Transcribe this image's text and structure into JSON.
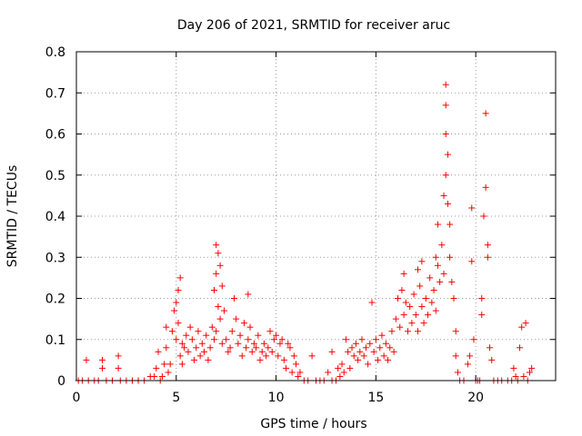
{
  "chart_data": {
    "type": "scatter",
    "title": "Day 206 of 2021, SRMTID for receiver aruc",
    "xlabel": "GPS time / hours",
    "ylabel": "SRMTID / TECUs",
    "xlim": [
      0,
      24
    ],
    "ylim": [
      0,
      0.8
    ],
    "xticks": [
      0,
      5,
      10,
      15,
      20
    ],
    "yticks": [
      0,
      0.1,
      0.2,
      0.3,
      0.4,
      0.5,
      0.6,
      0.7,
      0.8
    ],
    "xtick_labels": [
      "0",
      "5",
      "10",
      "15",
      "20"
    ],
    "ytick_labels": [
      "0",
      "0.1",
      "0.2",
      "0.3",
      "0.4",
      "0.5",
      "0.6",
      "0.7",
      "0.8"
    ],
    "grid": true,
    "marker": "+",
    "color": "#ff0000",
    "series": [
      {
        "name": "SRMTID",
        "points": [
          [
            0.1,
            0
          ],
          [
            0.3,
            0
          ],
          [
            0.5,
            0.05
          ],
          [
            0.6,
            0
          ],
          [
            0.9,
            0
          ],
          [
            1.1,
            0
          ],
          [
            1.3,
            0.05
          ],
          [
            1.3,
            0.03
          ],
          [
            1.5,
            0
          ],
          [
            1.8,
            0
          ],
          [
            2.1,
            0.06
          ],
          [
            2.1,
            0.03
          ],
          [
            2.2,
            0
          ],
          [
            2.5,
            0
          ],
          [
            2.8,
            0
          ],
          [
            3.1,
            0
          ],
          [
            3.4,
            0
          ],
          [
            3.7,
            0.01
          ],
          [
            3.9,
            0.01
          ],
          [
            4.0,
            0.03
          ],
          [
            4.1,
            0.07
          ],
          [
            4.2,
            0
          ],
          [
            4.3,
            0.01
          ],
          [
            4.4,
            0.04
          ],
          [
            4.5,
            0.13
          ],
          [
            4.5,
            0.08
          ],
          [
            4.6,
            0.02
          ],
          [
            4.7,
            0.04
          ],
          [
            4.8,
            0.12
          ],
          [
            4.9,
            0.17
          ],
          [
            5.0,
            0.19
          ],
          [
            5.0,
            0.1
          ],
          [
            5.1,
            0.22
          ],
          [
            5.1,
            0.14
          ],
          [
            5.2,
            0.25
          ],
          [
            5.2,
            0.06
          ],
          [
            5.3,
            0.09
          ],
          [
            5.3,
            0.04
          ],
          [
            5.4,
            0.08
          ],
          [
            5.5,
            0.11
          ],
          [
            5.6,
            0.07
          ],
          [
            5.7,
            0.13
          ],
          [
            5.8,
            0.1
          ],
          [
            5.9,
            0.05
          ],
          [
            6.0,
            0.08
          ],
          [
            6.1,
            0.12
          ],
          [
            6.2,
            0.06
          ],
          [
            6.3,
            0.09
          ],
          [
            6.4,
            0.07
          ],
          [
            6.5,
            0.11
          ],
          [
            6.6,
            0.05
          ],
          [
            6.7,
            0.08
          ],
          [
            6.8,
            0.13
          ],
          [
            6.9,
            0.22
          ],
          [
            6.9,
            0.1
          ],
          [
            7.0,
            0.33
          ],
          [
            7.0,
            0.26
          ],
          [
            7.0,
            0.12
          ],
          [
            7.1,
            0.31
          ],
          [
            7.1,
            0.18
          ],
          [
            7.2,
            0.28
          ],
          [
            7.2,
            0.15
          ],
          [
            7.3,
            0.23
          ],
          [
            7.3,
            0.09
          ],
          [
            7.4,
            0.17
          ],
          [
            7.5,
            0.1
          ],
          [
            7.6,
            0.07
          ],
          [
            7.7,
            0.08
          ],
          [
            7.8,
            0.12
          ],
          [
            7.9,
            0.2
          ],
          [
            8.0,
            0.15
          ],
          [
            8.1,
            0.09
          ],
          [
            8.2,
            0.11
          ],
          [
            8.3,
            0.06
          ],
          [
            8.4,
            0.14
          ],
          [
            8.5,
            0.08
          ],
          [
            8.6,
            0.21
          ],
          [
            8.6,
            0.1
          ],
          [
            8.7,
            0.13
          ],
          [
            8.8,
            0.07
          ],
          [
            8.9,
            0.09
          ],
          [
            9.0,
            0.08
          ],
          [
            9.1,
            0.11
          ],
          [
            9.2,
            0.05
          ],
          [
            9.3,
            0.07
          ],
          [
            9.4,
            0.09
          ],
          [
            9.5,
            0.06
          ],
          [
            9.6,
            0.08
          ],
          [
            9.7,
            0.12
          ],
          [
            9.8,
            0.07
          ],
          [
            9.9,
            0.1
          ],
          [
            10.0,
            0.11
          ],
          [
            10.1,
            0.06
          ],
          [
            10.2,
            0.09
          ],
          [
            10.3,
            0.1
          ],
          [
            10.4,
            0.05
          ],
          [
            10.5,
            0.03
          ],
          [
            10.6,
            0.09
          ],
          [
            10.7,
            0.08
          ],
          [
            10.8,
            0.02
          ],
          [
            10.9,
            0.06
          ],
          [
            11.0,
            0.04
          ],
          [
            11.1,
            0.01
          ],
          [
            11.2,
            0.02
          ],
          [
            11.4,
            0
          ],
          [
            11.6,
            0
          ],
          [
            11.8,
            0.06
          ],
          [
            12.0,
            0
          ],
          [
            12.2,
            0
          ],
          [
            12.4,
            0
          ],
          [
            12.6,
            0.02
          ],
          [
            12.8,
            0.07
          ],
          [
            12.8,
            0
          ],
          [
            13.0,
            0
          ],
          [
            13.1,
            0.03
          ],
          [
            13.2,
            0.01
          ],
          [
            13.3,
            0.04
          ],
          [
            13.4,
            0.02
          ],
          [
            13.5,
            0.1
          ],
          [
            13.6,
            0.07
          ],
          [
            13.7,
            0.03
          ],
          [
            13.8,
            0.08
          ],
          [
            13.9,
            0.06
          ],
          [
            14.0,
            0.09
          ],
          [
            14.1,
            0.05
          ],
          [
            14.2,
            0.07
          ],
          [
            14.3,
            0.1
          ],
          [
            14.4,
            0.06
          ],
          [
            14.5,
            0.08
          ],
          [
            14.6,
            0.04
          ],
          [
            14.7,
            0.09
          ],
          [
            14.8,
            0.19
          ],
          [
            14.9,
            0.07
          ],
          [
            15.0,
            0.1
          ],
          [
            15.1,
            0.05
          ],
          [
            15.2,
            0.08
          ],
          [
            15.3,
            0.11
          ],
          [
            15.4,
            0.06
          ],
          [
            15.5,
            0.09
          ],
          [
            15.6,
            0.05
          ],
          [
            15.7,
            0.08
          ],
          [
            15.8,
            0.12
          ],
          [
            15.9,
            0.07
          ],
          [
            16.0,
            0.15
          ],
          [
            16.1,
            0.2
          ],
          [
            16.2,
            0.13
          ],
          [
            16.3,
            0.22
          ],
          [
            16.4,
            0.26
          ],
          [
            16.4,
            0.16
          ],
          [
            16.5,
            0.19
          ],
          [
            16.6,
            0.12
          ],
          [
            16.7,
            0.18
          ],
          [
            16.8,
            0.14
          ],
          [
            16.9,
            0.21
          ],
          [
            17.0,
            0.16
          ],
          [
            17.1,
            0.27
          ],
          [
            17.1,
            0.12
          ],
          [
            17.2,
            0.23
          ],
          [
            17.3,
            0.29
          ],
          [
            17.3,
            0.18
          ],
          [
            17.4,
            0.14
          ],
          [
            17.5,
            0.2
          ],
          [
            17.6,
            0.16
          ],
          [
            17.7,
            0.25
          ],
          [
            17.8,
            0.19
          ],
          [
            17.9,
            0.22
          ],
          [
            18.0,
            0.3
          ],
          [
            18.0,
            0.17
          ],
          [
            18.1,
            0.28
          ],
          [
            18.1,
            0.38
          ],
          [
            18.2,
            0.24
          ],
          [
            18.3,
            0.33
          ],
          [
            18.4,
            0.45
          ],
          [
            18.4,
            0.26
          ],
          [
            18.5,
            0.72
          ],
          [
            18.5,
            0.67
          ],
          [
            18.5,
            0.6
          ],
          [
            18.5,
            0.5
          ],
          [
            18.6,
            0.55
          ],
          [
            18.6,
            0.43
          ],
          [
            18.7,
            0.38
          ],
          [
            18.7,
            0.3
          ],
          [
            18.8,
            0.24
          ],
          [
            18.9,
            0.2
          ],
          [
            19.0,
            0.12
          ],
          [
            19.0,
            0.06
          ],
          [
            19.1,
            0.02
          ],
          [
            19.2,
            0
          ],
          [
            19.4,
            0
          ],
          [
            19.6,
            0.04
          ],
          [
            19.7,
            0.06
          ],
          [
            19.8,
            0.42
          ],
          [
            19.8,
            0.29
          ],
          [
            19.9,
            0.1
          ],
          [
            20.0,
            0
          ],
          [
            20.1,
            0
          ],
          [
            20.2,
            0
          ],
          [
            20.3,
            0.2
          ],
          [
            20.3,
            0.16
          ],
          [
            20.4,
            0.4
          ],
          [
            20.5,
            0.65
          ],
          [
            20.5,
            0.47
          ],
          [
            20.6,
            0.33
          ],
          [
            20.6,
            0.3
          ],
          [
            20.7,
            0.08
          ],
          [
            20.8,
            0.05
          ],
          [
            20.9,
            0
          ],
          [
            21.1,
            0
          ],
          [
            21.3,
            0
          ],
          [
            21.6,
            0
          ],
          [
            21.8,
            0
          ],
          [
            21.9,
            0.03
          ],
          [
            22.0,
            0.01
          ],
          [
            22.1,
            0
          ],
          [
            22.2,
            0.08
          ],
          [
            22.3,
            0.13
          ],
          [
            22.4,
            0.01
          ],
          [
            22.5,
            0.14
          ],
          [
            22.6,
            0
          ],
          [
            22.7,
            0.02
          ],
          [
            22.8,
            0.03
          ]
        ]
      }
    ]
  }
}
